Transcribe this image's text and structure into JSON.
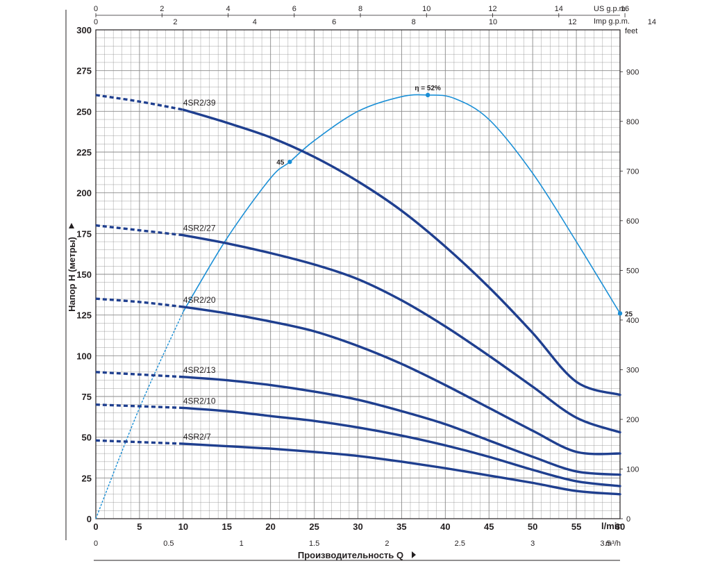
{
  "chart_data": {
    "type": "line",
    "xlabel": "Производительность Q",
    "ylabel": "Напор H (метры)",
    "x_unit": "l/min",
    "xlim": [
      0,
      60
    ],
    "ylim": [
      0,
      300
    ],
    "x_ticks": [
      0,
      5,
      10,
      15,
      20,
      25,
      30,
      35,
      40,
      45,
      50,
      55,
      60
    ],
    "y_ticks": [
      0,
      25,
      50,
      75,
      100,
      125,
      150,
      175,
      200,
      225,
      250,
      275,
      300
    ],
    "grid": true,
    "secondary_axes": {
      "top_us_gpm": {
        "unit": "US g.p.m.",
        "ticks": [
          0,
          2,
          4,
          6,
          8,
          10,
          12,
          14,
          16
        ],
        "lpm_per_unit": 3.785
      },
      "top_imp_gpm": {
        "unit": "Imp g.p.m.",
        "ticks": [
          0,
          2,
          4,
          6,
          8,
          10,
          12,
          14
        ],
        "lpm_per_unit": 4.546
      },
      "bottom_m3h": {
        "unit": "m³/h",
        "ticks": [
          "0",
          "0.5",
          "1",
          "1.5",
          "2",
          "2.5",
          "3",
          "3.5"
        ],
        "lpm_per_unit": 16.667
      },
      "right_feet": {
        "unit": "feet",
        "ticks": [
          0,
          100,
          200,
          300,
          400,
          500,
          600,
          700,
          800,
          900
        ],
        "m_per_unit": 0.3048
      }
    },
    "series": [
      {
        "name": "4SR2/39",
        "dashed_until_x": 10,
        "x": [
          0,
          5,
          10,
          15,
          20,
          25,
          30,
          35,
          40,
          45,
          50,
          55,
          60
        ],
        "y": [
          260,
          256,
          251,
          243,
          234,
          222,
          207,
          189,
          167,
          142,
          114,
          84,
          76
        ]
      },
      {
        "name": "4SR2/27",
        "dashed_until_x": 10,
        "x": [
          0,
          5,
          10,
          15,
          20,
          25,
          30,
          35,
          40,
          45,
          50,
          55,
          60
        ],
        "y": [
          180,
          177,
          174,
          169,
          163,
          156,
          147,
          134,
          118,
          100,
          81,
          62,
          53
        ]
      },
      {
        "name": "4SR2/20",
        "dashed_until_x": 10,
        "x": [
          0,
          5,
          10,
          15,
          20,
          25,
          30,
          35,
          40,
          45,
          50,
          55,
          60
        ],
        "y": [
          135,
          133,
          130,
          126,
          121,
          115,
          106,
          95,
          82,
          68,
          54,
          41,
          40
        ]
      },
      {
        "name": "4SR2/13",
        "dashed_until_x": 10,
        "x": [
          0,
          5,
          10,
          15,
          20,
          25,
          30,
          35,
          40,
          45,
          50,
          55,
          60
        ],
        "y": [
          90,
          88.5,
          87,
          85,
          82,
          78,
          73,
          66,
          58,
          48,
          38,
          29,
          27
        ]
      },
      {
        "name": "4SR2/10",
        "dashed_until_x": 10,
        "x": [
          0,
          5,
          10,
          15,
          20,
          25,
          30,
          35,
          40,
          45,
          50,
          55,
          60
        ],
        "y": [
          70,
          69,
          68,
          66,
          63,
          60,
          56,
          51,
          45,
          38,
          30,
          23,
          20
        ]
      },
      {
        "name": "4SR2/7",
        "dashed_until_x": 10,
        "x": [
          0,
          5,
          10,
          15,
          20,
          25,
          30,
          35,
          40,
          45,
          50,
          55,
          60
        ],
        "y": [
          48,
          47,
          46,
          44.5,
          43,
          41,
          38.5,
          35,
          31,
          26.5,
          22,
          17,
          15
        ]
      }
    ],
    "efficiency_curve": {
      "dashed_until_x": 10,
      "x": [
        0,
        5,
        10,
        15,
        20,
        22.2,
        25,
        30,
        35,
        38,
        41,
        45,
        50,
        55,
        60
      ],
      "y": [
        0,
        68,
        127,
        172,
        209,
        219,
        232,
        250,
        259,
        260,
        258,
        245,
        212,
        170,
        126
      ],
      "points": [
        {
          "label": "45",
          "x": 22.2,
          "y": 219
        },
        {
          "label": "η = 52%",
          "x": 38,
          "y": 260
        },
        {
          "label": "25",
          "x": 60,
          "y": 126
        }
      ]
    },
    "colors": {
      "pump_curves": "#1f3f8f",
      "efficiency": "#1a8fd6",
      "grid": "#8a8a8a"
    }
  }
}
